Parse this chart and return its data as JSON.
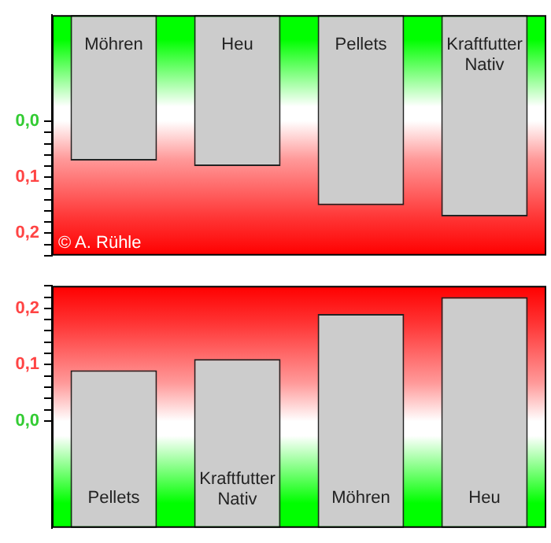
{
  "chart_data": [
    {
      "type": "bar",
      "categories": [
        "Möhren",
        "Heu",
        "Pellets",
        "Kraftfutter Nativ"
      ],
      "base": [
        -0.19,
        -0.19,
        -0.19,
        -0.19
      ],
      "values": [
        0.26,
        0.27,
        0.34,
        0.36
      ],
      "color": "#cccccc",
      "ylim": [
        0.24,
        -0.19
      ],
      "yticks": [
        {
          "value": 0,
          "label": "0,0"
        },
        {
          "value": 0.02,
          "label": null
        },
        {
          "value": 0.04,
          "label": null
        },
        {
          "value": 0.06,
          "label": null
        },
        {
          "value": 0.08,
          "label": null
        },
        {
          "value": 0.1,
          "label": "0,1"
        },
        {
          "value": 0.12,
          "label": null
        },
        {
          "value": 0.14,
          "label": null
        },
        {
          "value": 0.16,
          "label": null
        },
        {
          "value": 0.18,
          "label": null
        },
        {
          "value": 0.2,
          "label": "0,2"
        },
        {
          "value": 0.22,
          "label": null
        },
        {
          "value": 0.24,
          "label": null
        }
      ],
      "grid": false,
      "legend": false,
      "tick_labels": "y",
      "annotations": [
        "© A. Rühle"
      ]
    },
    {
      "type": "bar",
      "categories": [
        "Pellets",
        "Kraftfutter Nativ",
        "Möhren",
        "Heu"
      ],
      "base": [
        -0.19,
        -0.19,
        -0.19,
        -0.19
      ],
      "values": [
        0.28,
        0.3,
        0.38,
        0.41
      ],
      "color": "#cccccc",
      "ylim": [
        -0.19,
        0.24
      ],
      "yticks": [
        {
          "value": 0,
          "label": "0,0"
        },
        {
          "value": 0.02,
          "label": null
        },
        {
          "value": 0.04,
          "label": null
        },
        {
          "value": 0.06,
          "label": null
        },
        {
          "value": 0.08,
          "label": null
        },
        {
          "value": 0.1,
          "label": "0,1"
        },
        {
          "value": 0.12,
          "label": null
        },
        {
          "value": 0.14,
          "label": null
        },
        {
          "value": 0.16,
          "label": null
        },
        {
          "value": 0.18,
          "label": null
        },
        {
          "value": 0.2,
          "label": "0,2"
        },
        {
          "value": 0.22,
          "label": null
        },
        {
          "value": 0.24,
          "label": null
        }
      ],
      "grid": false,
      "legend": false,
      "tick_labels": "y"
    }
  ]
}
